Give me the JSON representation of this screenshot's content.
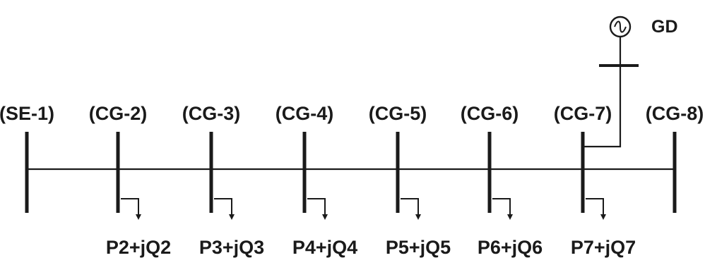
{
  "buses": [
    {
      "id": "SE-1",
      "label": "(SE-1)",
      "has_load": false,
      "load_label": ""
    },
    {
      "id": "CG-2",
      "label": "(CG-2)",
      "has_load": true,
      "load_label": "P2+jQ2"
    },
    {
      "id": "CG-3",
      "label": "(CG-3)",
      "has_load": true,
      "load_label": "P3+jQ3"
    },
    {
      "id": "CG-4",
      "label": "(CG-4)",
      "has_load": true,
      "load_label": "P4+jQ4"
    },
    {
      "id": "CG-5",
      "label": "(CG-5)",
      "has_load": true,
      "load_label": "P5+jQ5"
    },
    {
      "id": "CG-6",
      "label": "(CG-6)",
      "has_load": true,
      "load_label": "P6+jQ6"
    },
    {
      "id": "CG-7",
      "label": "(CG-7)",
      "has_load": true,
      "load_label": "P7+jQ7"
    },
    {
      "id": "CG-8",
      "label": "(CG-8)",
      "has_load": false,
      "load_label": ""
    }
  ],
  "generator": {
    "label": "GD",
    "connected_bus": "CG-7",
    "icon": "ac-source-icon"
  },
  "colors": {
    "line": "#1a1a1a"
  }
}
